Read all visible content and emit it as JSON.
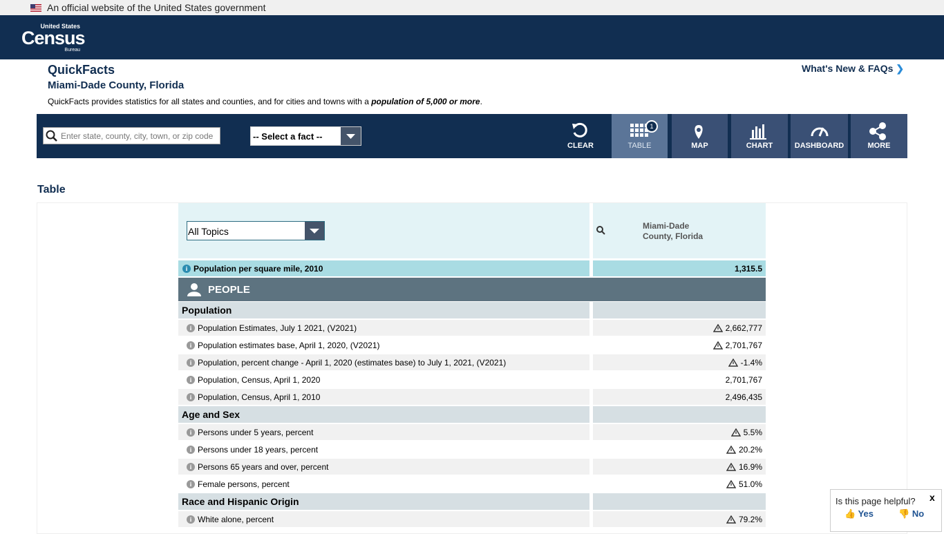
{
  "gov_banner": "An official website of the United States government",
  "logo": {
    "top": "United States",
    "main": "Census",
    "bottom": "Bureau"
  },
  "header": {
    "title": "QuickFacts",
    "subtitle": "Miami-Dade County, Florida",
    "whats_new": "What's New & FAQs",
    "intro": "QuickFacts provides statistics for all states and counties, and for cities and towns with a ",
    "intro_bold": "population of 5,000 or more",
    "intro_end": "."
  },
  "toolbar": {
    "search_placeholder": "Enter state, county, city, town, or zip code",
    "select_fact": "-- Select a fact --",
    "buttons": [
      "CLEAR",
      "TABLE",
      "MAP",
      "CHART",
      "DASHBOARD",
      "MORE"
    ],
    "table_badge": "1"
  },
  "section_title": "Table",
  "table": {
    "topic_select": "All Topics",
    "column_header": "Miami-Dade County, Florida",
    "density": {
      "label": "Population per square mile, 2010",
      "value": "1,315.5"
    },
    "section": "PEOPLE",
    "groups": [
      {
        "name": "Population",
        "rows": [
          {
            "label": "Population Estimates, July 1 2021, (V2021)",
            "value": "2,662,777",
            "flag": true
          },
          {
            "label": "Population estimates base, April 1, 2020, (V2021)",
            "value": "2,701,767",
            "flag": true
          },
          {
            "label": "Population, percent change - April 1, 2020 (estimates base) to July 1, 2021, (V2021)",
            "value": "-1.4%",
            "flag": true
          },
          {
            "label": "Population, Census, April 1, 2020",
            "value": "2,701,767",
            "flag": false
          },
          {
            "label": "Population, Census, April 1, 2010",
            "value": "2,496,435",
            "flag": false
          }
        ]
      },
      {
        "name": "Age and Sex",
        "rows": [
          {
            "label": "Persons under 5 years, percent",
            "value": "5.5%",
            "flag": true
          },
          {
            "label": "Persons under 18 years, percent",
            "value": "20.2%",
            "flag": true
          },
          {
            "label": "Persons 65 years and over, percent",
            "value": "16.9%",
            "flag": true
          },
          {
            "label": "Female persons, percent",
            "value": "51.0%",
            "flag": true
          }
        ]
      },
      {
        "name": "Race and Hispanic Origin",
        "rows": [
          {
            "label": "White alone, percent",
            "value": "79.2%",
            "flag": true
          }
        ]
      }
    ]
  },
  "feedback": {
    "question": "Is this page helpful?",
    "yes": "Yes",
    "no": "No",
    "close": "x"
  }
}
